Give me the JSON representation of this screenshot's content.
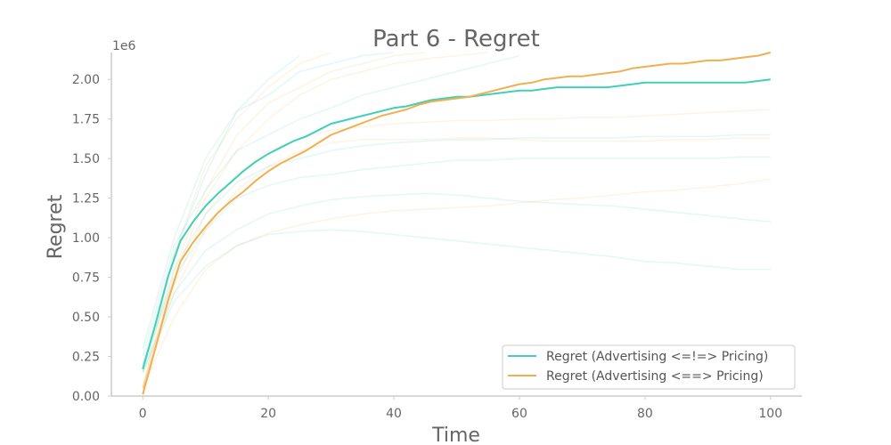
{
  "chart_data": {
    "type": "line",
    "title": "Part 6 - Regret",
    "xlabel": "Time",
    "ylabel": "Regret",
    "y_offset_label": "1e6",
    "xlim": [
      -5,
      105
    ],
    "ylim": [
      0,
      2.17
    ],
    "x_ticks": [
      0,
      20,
      40,
      60,
      80,
      100
    ],
    "x_tick_labels": [
      "0",
      "20",
      "40",
      "60",
      "80",
      "100"
    ],
    "y_ticks": [
      0,
      0.25,
      0.5,
      0.75,
      1.0,
      1.25,
      1.5,
      1.75,
      2.0
    ],
    "y_tick_labels": [
      "0.00",
      "0.25",
      "0.50",
      "0.75",
      "1.00",
      "1.25",
      "1.50",
      "1.75",
      "2.00"
    ],
    "grid": false,
    "legend_position": "bottom-right",
    "series": [
      {
        "name": "Regret (Advertising <=!=> Pricing)",
        "color": "#40d0b8",
        "points": [
          [
            0,
            0.17
          ],
          [
            2,
            0.45
          ],
          [
            4,
            0.75
          ],
          [
            6,
            0.98
          ],
          [
            8,
            1.1
          ],
          [
            10,
            1.2
          ],
          [
            12,
            1.28
          ],
          [
            14,
            1.35
          ],
          [
            16,
            1.42
          ],
          [
            18,
            1.48
          ],
          [
            20,
            1.53
          ],
          [
            22,
            1.57
          ],
          [
            24,
            1.61
          ],
          [
            26,
            1.64
          ],
          [
            28,
            1.68
          ],
          [
            30,
            1.72
          ],
          [
            32,
            1.74
          ],
          [
            34,
            1.76
          ],
          [
            36,
            1.78
          ],
          [
            38,
            1.8
          ],
          [
            40,
            1.82
          ],
          [
            42,
            1.83
          ],
          [
            44,
            1.85
          ],
          [
            46,
            1.87
          ],
          [
            48,
            1.88
          ],
          [
            50,
            1.89
          ],
          [
            52,
            1.89
          ],
          [
            54,
            1.9
          ],
          [
            56,
            1.91
          ],
          [
            58,
            1.92
          ],
          [
            60,
            1.93
          ],
          [
            62,
            1.93
          ],
          [
            64,
            1.94
          ],
          [
            66,
            1.95
          ],
          [
            68,
            1.95
          ],
          [
            70,
            1.95
          ],
          [
            72,
            1.95
          ],
          [
            74,
            1.95
          ],
          [
            76,
            1.96
          ],
          [
            78,
            1.97
          ],
          [
            80,
            1.98
          ],
          [
            82,
            1.98
          ],
          [
            84,
            1.98
          ],
          [
            86,
            1.98
          ],
          [
            88,
            1.98
          ],
          [
            90,
            1.98
          ],
          [
            92,
            1.98
          ],
          [
            94,
            1.98
          ],
          [
            96,
            1.98
          ],
          [
            98,
            1.99
          ],
          [
            100,
            2.0
          ]
        ]
      },
      {
        "name": "Regret (Advertising <==> Pricing)",
        "color": "#f0b050",
        "points": [
          [
            0,
            0.01
          ],
          [
            2,
            0.3
          ],
          [
            4,
            0.6
          ],
          [
            6,
            0.85
          ],
          [
            8,
            0.97
          ],
          [
            10,
            1.07
          ],
          [
            12,
            1.16
          ],
          [
            14,
            1.23
          ],
          [
            16,
            1.29
          ],
          [
            18,
            1.36
          ],
          [
            20,
            1.42
          ],
          [
            22,
            1.47
          ],
          [
            24,
            1.51
          ],
          [
            26,
            1.55
          ],
          [
            28,
            1.6
          ],
          [
            30,
            1.65
          ],
          [
            32,
            1.68
          ],
          [
            34,
            1.71
          ],
          [
            36,
            1.74
          ],
          [
            38,
            1.77
          ],
          [
            40,
            1.79
          ],
          [
            42,
            1.81
          ],
          [
            44,
            1.84
          ],
          [
            46,
            1.86
          ],
          [
            48,
            1.87
          ],
          [
            50,
            1.88
          ],
          [
            52,
            1.89
          ],
          [
            54,
            1.91
          ],
          [
            56,
            1.93
          ],
          [
            58,
            1.95
          ],
          [
            60,
            1.97
          ],
          [
            62,
            1.98
          ],
          [
            64,
            2.0
          ],
          [
            66,
            2.01
          ],
          [
            68,
            2.02
          ],
          [
            70,
            2.02
          ],
          [
            72,
            2.03
          ],
          [
            74,
            2.04
          ],
          [
            76,
            2.05
          ],
          [
            78,
            2.07
          ],
          [
            80,
            2.08
          ],
          [
            82,
            2.09
          ],
          [
            84,
            2.1
          ],
          [
            86,
            2.1
          ],
          [
            88,
            2.11
          ],
          [
            90,
            2.12
          ],
          [
            92,
            2.12
          ],
          [
            94,
            2.13
          ],
          [
            96,
            2.14
          ],
          [
            98,
            2.15
          ],
          [
            100,
            2.17
          ]
        ]
      }
    ],
    "background_runs": [
      {
        "color": "#40d0b8",
        "points": [
          [
            0,
            0.2
          ],
          [
            5,
            0.75
          ],
          [
            10,
            1.05
          ],
          [
            15,
            1.25
          ],
          [
            20,
            1.33
          ],
          [
            25,
            1.38
          ],
          [
            30,
            1.4
          ],
          [
            35,
            1.43
          ],
          [
            40,
            1.45
          ],
          [
            45,
            1.47
          ],
          [
            50,
            1.49
          ],
          [
            55,
            1.49
          ],
          [
            60,
            1.5
          ],
          [
            65,
            1.5
          ],
          [
            70,
            1.5
          ],
          [
            75,
            1.5
          ],
          [
            80,
            1.5
          ],
          [
            85,
            1.5
          ],
          [
            90,
            1.5
          ],
          [
            95,
            1.51
          ],
          [
            100,
            1.51
          ]
        ]
      },
      {
        "color": "#40d0b8",
        "points": [
          [
            0,
            0.15
          ],
          [
            5,
            0.6
          ],
          [
            10,
            0.82
          ],
          [
            15,
            0.95
          ],
          [
            20,
            1.02
          ],
          [
            25,
            1.04
          ],
          [
            30,
            1.05
          ],
          [
            35,
            1.04
          ],
          [
            40,
            1.02
          ],
          [
            45,
            1.0
          ],
          [
            50,
            0.98
          ],
          [
            55,
            0.96
          ],
          [
            60,
            0.94
          ],
          [
            65,
            0.92
          ],
          [
            70,
            0.9
          ],
          [
            75,
            0.88
          ],
          [
            80,
            0.85
          ],
          [
            85,
            0.84
          ],
          [
            90,
            0.82
          ],
          [
            95,
            0.8
          ],
          [
            100,
            0.8
          ]
        ]
      },
      {
        "color": "#40d0b8",
        "points": [
          [
            0,
            0.15
          ],
          [
            5,
            0.65
          ],
          [
            10,
            0.92
          ],
          [
            15,
            1.05
          ],
          [
            20,
            1.15
          ],
          [
            25,
            1.2
          ],
          [
            30,
            1.24
          ],
          [
            35,
            1.26
          ],
          [
            40,
            1.27
          ],
          [
            45,
            1.28
          ],
          [
            50,
            1.27
          ],
          [
            55,
            1.25
          ],
          [
            60,
            1.23
          ],
          [
            65,
            1.22
          ],
          [
            70,
            1.21
          ],
          [
            75,
            1.2
          ],
          [
            80,
            1.18
          ],
          [
            85,
            1.16
          ],
          [
            90,
            1.14
          ],
          [
            95,
            1.12
          ],
          [
            100,
            1.1
          ]
        ]
      },
      {
        "color": "#40d0b8",
        "points": [
          [
            0,
            0.25
          ],
          [
            5,
            0.95
          ],
          [
            10,
            1.3
          ],
          [
            15,
            1.55
          ],
          [
            20,
            1.65
          ],
          [
            25,
            1.75
          ],
          [
            30,
            1.82
          ],
          [
            35,
            1.9
          ],
          [
            40,
            1.95
          ],
          [
            45,
            2.0
          ],
          [
            50,
            2.05
          ],
          [
            55,
            2.1
          ],
          [
            60,
            2.15
          ]
        ]
      },
      {
        "color": "#40d0b8",
        "points": [
          [
            0,
            0.2
          ],
          [
            5,
            0.9
          ],
          [
            10,
            1.4
          ],
          [
            15,
            1.8
          ],
          [
            20,
            1.9
          ],
          [
            25,
            2.05
          ],
          [
            30,
            2.1
          ],
          [
            35,
            2.15
          ],
          [
            40,
            2.17
          ]
        ]
      },
      {
        "color": "#40d0b8",
        "points": [
          [
            0,
            0.15
          ],
          [
            5,
            0.8
          ],
          [
            10,
            1.15
          ],
          [
            15,
            1.35
          ],
          [
            20,
            1.45
          ],
          [
            25,
            1.5
          ],
          [
            30,
            1.55
          ],
          [
            35,
            1.58
          ],
          [
            40,
            1.6
          ],
          [
            45,
            1.61
          ],
          [
            50,
            1.62
          ],
          [
            55,
            1.62
          ],
          [
            60,
            1.63
          ],
          [
            65,
            1.63
          ],
          [
            70,
            1.63
          ],
          [
            75,
            1.63
          ],
          [
            80,
            1.64
          ],
          [
            85,
            1.64
          ],
          [
            90,
            1.64
          ],
          [
            95,
            1.65
          ],
          [
            100,
            1.65
          ]
        ]
      },
      {
        "color": "#40d0b8",
        "points": [
          [
            0,
            0.3
          ],
          [
            5,
            1.0
          ],
          [
            10,
            1.5
          ],
          [
            15,
            1.8
          ],
          [
            20,
            2.0
          ],
          [
            25,
            2.15
          ]
        ]
      },
      {
        "color": "#f0b050",
        "points": [
          [
            0,
            0.05
          ],
          [
            5,
            0.5
          ],
          [
            10,
            0.8
          ],
          [
            15,
            0.95
          ],
          [
            20,
            1.03
          ],
          [
            25,
            1.08
          ],
          [
            30,
            1.12
          ],
          [
            35,
            1.15
          ],
          [
            40,
            1.17
          ],
          [
            45,
            1.18
          ],
          [
            50,
            1.19
          ],
          [
            55,
            1.2
          ],
          [
            60,
            1.22
          ],
          [
            65,
            1.24
          ],
          [
            70,
            1.25
          ],
          [
            75,
            1.27
          ],
          [
            80,
            1.29
          ],
          [
            85,
            1.3
          ],
          [
            90,
            1.32
          ],
          [
            95,
            1.34
          ],
          [
            100,
            1.37
          ]
        ]
      },
      {
        "color": "#f0b050",
        "points": [
          [
            0,
            0.05
          ],
          [
            5,
            0.65
          ],
          [
            10,
            1.05
          ],
          [
            15,
            1.3
          ],
          [
            20,
            1.45
          ],
          [
            25,
            1.55
          ],
          [
            30,
            1.6
          ],
          [
            35,
            1.62
          ],
          [
            40,
            1.62
          ],
          [
            45,
            1.62
          ],
          [
            50,
            1.63
          ],
          [
            55,
            1.63
          ],
          [
            60,
            1.62
          ],
          [
            65,
            1.61
          ],
          [
            70,
            1.61
          ],
          [
            75,
            1.61
          ],
          [
            80,
            1.61
          ],
          [
            85,
            1.62
          ],
          [
            90,
            1.62
          ],
          [
            95,
            1.63
          ],
          [
            100,
            1.63
          ]
        ]
      },
      {
        "color": "#f0b050",
        "points": [
          [
            0,
            0.05
          ],
          [
            5,
            0.7
          ],
          [
            10,
            1.15
          ],
          [
            15,
            1.4
          ],
          [
            20,
            1.55
          ],
          [
            25,
            1.63
          ],
          [
            30,
            1.68
          ],
          [
            35,
            1.7
          ],
          [
            40,
            1.72
          ],
          [
            45,
            1.73
          ],
          [
            50,
            1.74
          ],
          [
            55,
            1.74
          ],
          [
            60,
            1.75
          ],
          [
            65,
            1.75
          ],
          [
            70,
            1.76
          ],
          [
            75,
            1.76
          ],
          [
            80,
            1.77
          ],
          [
            85,
            1.78
          ],
          [
            90,
            1.79
          ],
          [
            95,
            1.8
          ],
          [
            100,
            1.81
          ]
        ]
      },
      {
        "color": "#f0b050",
        "points": [
          [
            0,
            0.05
          ],
          [
            5,
            0.8
          ],
          [
            10,
            1.3
          ],
          [
            15,
            1.65
          ],
          [
            20,
            1.85
          ],
          [
            25,
            1.95
          ],
          [
            30,
            2.05
          ],
          [
            35,
            2.1
          ],
          [
            40,
            2.15
          ],
          [
            45,
            2.17
          ]
        ]
      },
      {
        "color": "#f0b050",
        "points": [
          [
            0,
            0.05
          ],
          [
            5,
            0.75
          ],
          [
            10,
            1.25
          ],
          [
            15,
            1.55
          ],
          [
            20,
            1.75
          ],
          [
            25,
            1.9
          ],
          [
            30,
            2.0
          ],
          [
            35,
            2.05
          ],
          [
            40,
            2.1
          ],
          [
            45,
            2.13
          ],
          [
            50,
            2.15
          ],
          [
            55,
            2.17
          ]
        ]
      },
      {
        "color": "#f0b050",
        "points": [
          [
            0,
            0.05
          ],
          [
            5,
            0.9
          ],
          [
            10,
            1.45
          ],
          [
            15,
            1.75
          ],
          [
            20,
            1.95
          ],
          [
            25,
            2.1
          ],
          [
            30,
            2.17
          ]
        ]
      }
    ]
  }
}
